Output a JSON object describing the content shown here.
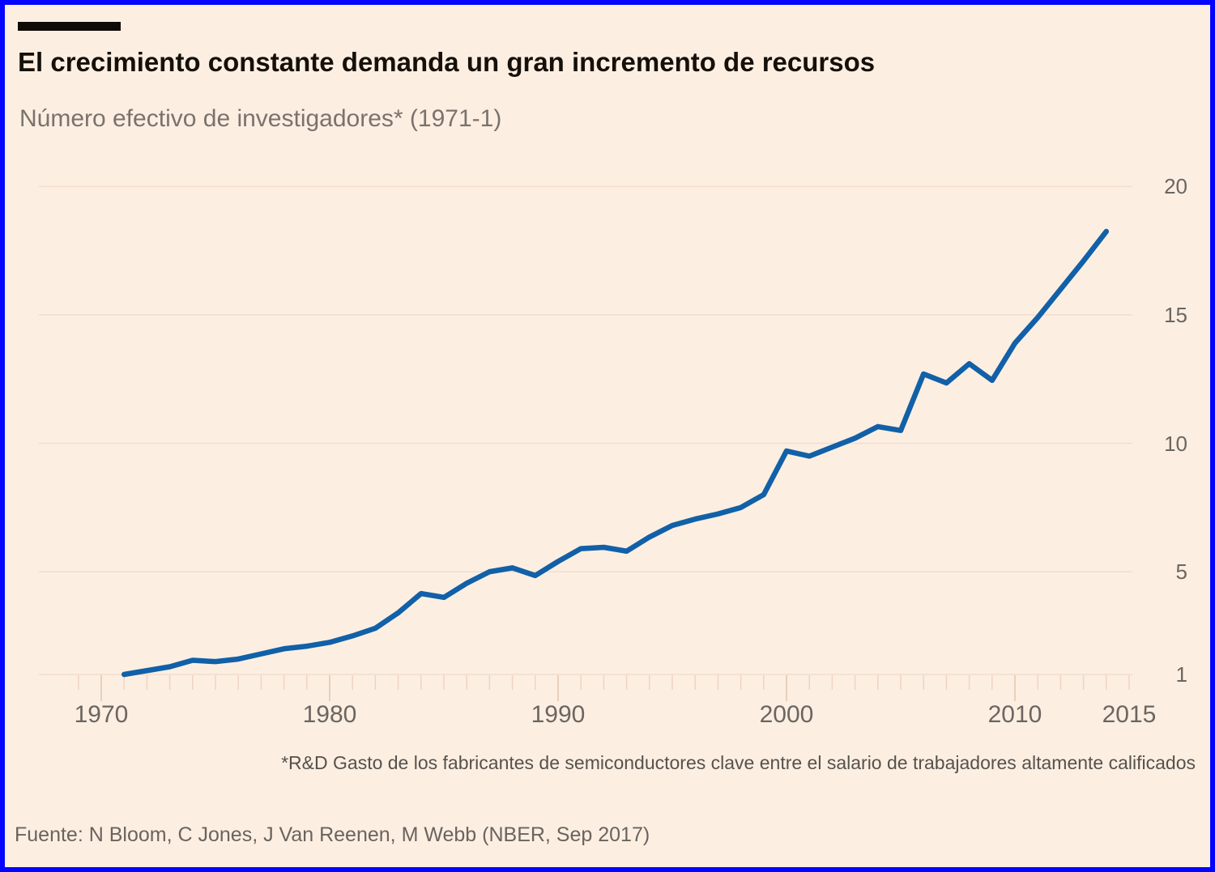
{
  "header": {
    "title": "El crecimiento constante demanda un gran incremento de recursos",
    "subtitle": "Número efectivo de investigadores* (1971-1)"
  },
  "footnote": "*R&D Gasto de los fabricantes de semiconductores clave entre el salario de trabajadores altamente calificados",
  "source": "Fuente: N Bloom, C Jones, J Van Reenen, M Webb (NBER, Sep 2017)",
  "colors": {
    "background": "#fcefe2",
    "frame_border": "#0505ff",
    "brand_bar": "#0f0a06",
    "line": "#1160a8",
    "gridline": "#f5dccd",
    "tick_minor": "#f0d3c2",
    "tick_major": "#e4c2ae",
    "axis_text": "#6c6560",
    "title_text": "#16100a",
    "subtitle_text": "#7b726c"
  },
  "chart_data": {
    "type": "line",
    "title": "El crecimiento constante demanda un gran incremento de recursos",
    "subtitle": "Número efectivo de investigadores* (1971-1)",
    "series_name": "Número efectivo de investigadores (1971=1)",
    "x": [
      1971,
      1972,
      1973,
      1974,
      1975,
      1976,
      1977,
      1978,
      1979,
      1980,
      1981,
      1982,
      1983,
      1984,
      1985,
      1986,
      1987,
      1988,
      1989,
      1990,
      1991,
      1992,
      1993,
      1994,
      1995,
      1996,
      1997,
      1998,
      1999,
      2000,
      2001,
      2002,
      2003,
      2004,
      2005,
      2006,
      2007,
      2008,
      2009,
      2010,
      2011,
      2012,
      2013,
      2014
    ],
    "values": [
      1.0,
      1.15,
      1.3,
      1.55,
      1.5,
      1.6,
      1.8,
      2.0,
      2.1,
      2.25,
      2.5,
      2.8,
      3.4,
      4.15,
      4.0,
      4.55,
      5.0,
      5.15,
      4.85,
      5.4,
      5.9,
      5.95,
      5.8,
      6.35,
      6.8,
      7.05,
      7.25,
      7.5,
      8.0,
      9.7,
      9.5,
      9.85,
      10.2,
      10.65,
      10.5,
      12.7,
      12.35,
      13.1,
      12.45,
      13.9,
      14.9,
      16.0,
      17.1,
      18.25
    ],
    "xticks": [
      1970,
      1980,
      1990,
      2000,
      2010,
      2015
    ],
    "yticks": [
      20,
      15,
      10,
      5,
      1
    ],
    "minor_xtick_years": [
      1969,
      2015
    ],
    "xlabel": "",
    "ylabel": "",
    "xlim": [
      1969,
      2015
    ],
    "ylim": [
      1,
      21
    ],
    "grid": "horizontal",
    "ytick_side": "right",
    "legend": "none"
  }
}
